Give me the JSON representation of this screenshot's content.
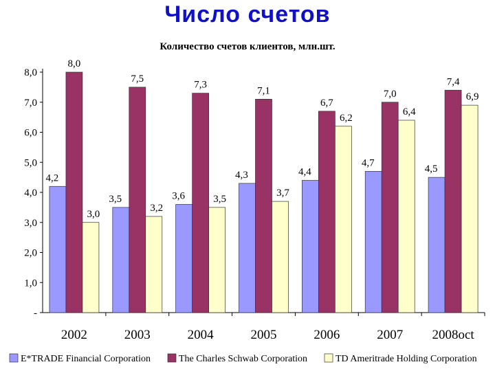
{
  "page": {
    "title": "Число счетов"
  },
  "chart_data": {
    "type": "bar",
    "title": "Количество счетов клиентов, млн.шт.",
    "categories": [
      "2002",
      "2003",
      "2004",
      "2005",
      "2006",
      "2007",
      "2008oct"
    ],
    "ylim": [
      0,
      8
    ],
    "yticks": [
      "-",
      "1,0",
      "2,0",
      "3,0",
      "4,0",
      "5,0",
      "6,0",
      "7,0",
      "8,0"
    ],
    "grid": false,
    "legend": "bottom",
    "series": [
      {
        "name": "E*TRADE Financial Corporation",
        "color": "#9999ff",
        "values": [
          4.2,
          3.5,
          3.6,
          4.3,
          4.4,
          4.7,
          4.5
        ],
        "labels": [
          "4,2",
          "3,5",
          "3,6",
          "4,3",
          "4,4",
          "4,7",
          "4,5"
        ]
      },
      {
        "name": "The Charles Schwab Corporation",
        "color": "#993366",
        "values": [
          8.0,
          7.5,
          7.3,
          7.1,
          6.7,
          7.0,
          7.4
        ],
        "labels": [
          "8,0",
          "7,5",
          "7,3",
          "7,1",
          "6,7",
          "7,0",
          "7,4"
        ]
      },
      {
        "name": "TD Ameritrade Holding Corporation",
        "color": "#ffffcc",
        "values": [
          3.0,
          3.2,
          3.5,
          3.7,
          6.2,
          6.4,
          6.9
        ],
        "labels": [
          "3,0",
          "3,2",
          "3,5",
          "3,7",
          "6,2",
          "6,4",
          "6,9"
        ]
      }
    ]
  }
}
